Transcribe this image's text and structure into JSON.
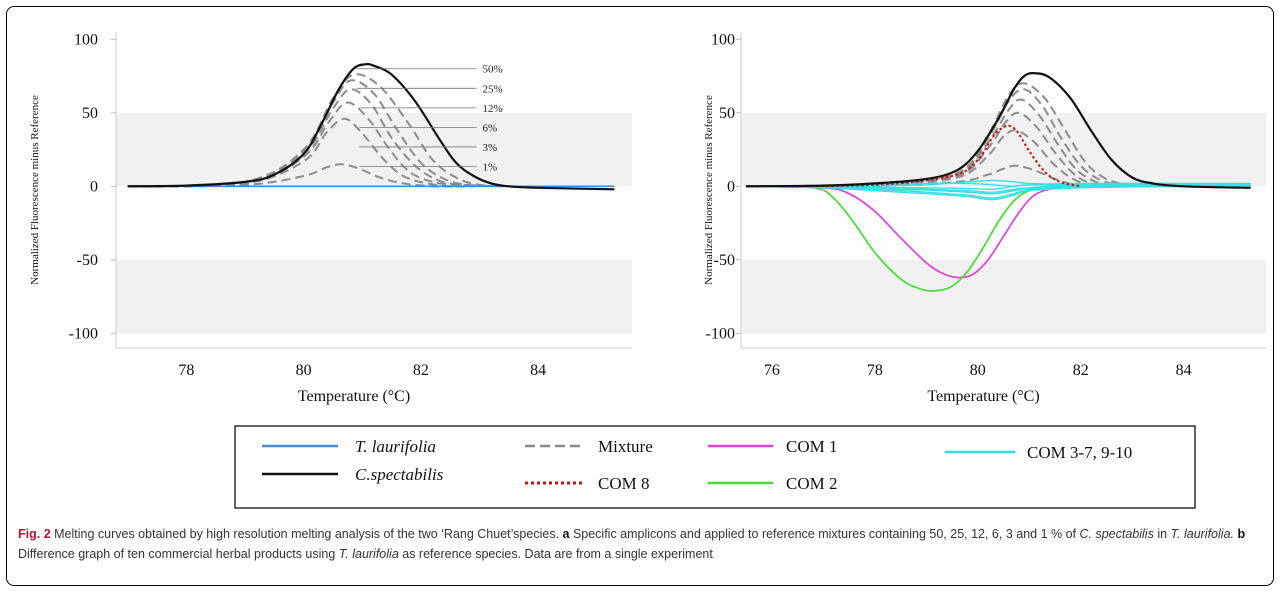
{
  "figure": {
    "caption": {
      "label": "Fig. 2",
      "text1": " Melting curves obtained by high resolution melting analysis of the two ‘Rang Chuet’species. ",
      "part_a": "a",
      "text2": " Specific amplicons and applied to reference mixtures containing 50, 25, 12, 6, 3 and 1 % of ",
      "species_c": "C. spectabilis",
      "text3": " in ",
      "species_t": "T. laurifolia.",
      "part_b": "b",
      "text4": " Difference graph of ten commercial herbal products using ",
      "species_t2": "T. laurifolia",
      "text5": " as reference species. Data are from a single experiment"
    }
  },
  "legend": [
    {
      "label": "T. laurifolia",
      "style": "solid",
      "color": "#4a86d8",
      "italic": true
    },
    {
      "label": "C.spectabilis",
      "style": "solid",
      "color": "#111111",
      "italic": true
    },
    {
      "label": "Mixture",
      "style": "dashed",
      "color": "#8a8a8a",
      "italic": false
    },
    {
      "label": "COM 8",
      "style": "dotted",
      "color": "#cc1111",
      "italic": false
    },
    {
      "label": "COM 1",
      "style": "solid",
      "color": "#e040e0",
      "italic": false
    },
    {
      "label": "COM 2",
      "style": "solid",
      "color": "#44dd33",
      "italic": false
    },
    {
      "label": "COM 3-7, 9-10",
      "style": "solid",
      "color": "#33e0e8",
      "italic": false
    }
  ],
  "chart_data": [
    {
      "type": "line",
      "xlabel": "Temperature (°C)",
      "ylabel": "Normalized Fluorescence minus Reference",
      "xlim": [
        76.8,
        85.6
      ],
      "ylim": [
        -110,
        105
      ],
      "xticks": [
        "78",
        "80",
        "82",
        "84"
      ],
      "yticks": [
        "100",
        "50",
        "0",
        "-50",
        "-100"
      ],
      "grid_bands": true,
      "mixture_labels": [
        "50%",
        "25%",
        "12%",
        "6%",
        "3%",
        "1%"
      ],
      "series": [
        {
          "name": "C.spectabilis",
          "x": [
            77.0,
            78.0,
            79.0,
            79.5,
            80.0,
            80.3,
            80.6,
            80.85,
            81.05,
            81.2,
            81.5,
            81.9,
            82.3,
            82.6,
            82.9,
            83.2,
            83.5,
            84.0,
            85.3
          ],
          "y": [
            0,
            0.5,
            3,
            8,
            22,
            42,
            66,
            80,
            83,
            82,
            76,
            58,
            33,
            16,
            7,
            2,
            0,
            -1,
            -2
          ]
        },
        {
          "name": "T. laurifolia",
          "x": [
            77.0,
            85.3
          ],
          "y": [
            0,
            0
          ]
        },
        {
          "name": "Mixture 50%",
          "x": [
            77.0,
            79.0,
            80.0,
            80.5,
            80.85,
            81.3,
            81.8,
            82.2,
            82.6,
            83.0,
            83.6
          ],
          "y": [
            0,
            3,
            25,
            60,
            76,
            68,
            42,
            18,
            6,
            1,
            0
          ]
        },
        {
          "name": "Mixture 25%",
          "x": [
            77.0,
            79.0,
            80.0,
            80.5,
            80.8,
            81.2,
            81.6,
            82.0,
            82.4,
            82.8,
            83.4
          ],
          "y": [
            0,
            3,
            24,
            57,
            72,
            63,
            38,
            16,
            5,
            1,
            0
          ]
        },
        {
          "name": "Mixture 12%",
          "x": [
            77.0,
            79.0,
            80.0,
            80.5,
            80.8,
            81.15,
            81.5,
            81.9,
            82.3,
            82.7,
            83.2
          ],
          "y": [
            0,
            3,
            22,
            53,
            66,
            56,
            33,
            14,
            4,
            1,
            0
          ]
        },
        {
          "name": "Mixture 6%",
          "x": [
            77.0,
            79.0,
            80.0,
            80.45,
            80.75,
            81.1,
            81.45,
            81.8,
            82.2,
            82.6,
            83.0
          ],
          "y": [
            0,
            2,
            20,
            45,
            57,
            46,
            26,
            10,
            3,
            1,
            0
          ]
        },
        {
          "name": "Mixture 3%",
          "x": [
            77.0,
            79.0,
            80.0,
            80.4,
            80.7,
            81.0,
            81.35,
            81.7,
            82.1,
            82.5,
            82.9
          ],
          "y": [
            0,
            2,
            17,
            37,
            46,
            36,
            19,
            7,
            2,
            0,
            0
          ]
        },
        {
          "name": "Mixture 1%",
          "x": [
            77.0,
            79.0,
            80.0,
            80.4,
            80.65,
            80.95,
            81.3,
            81.7,
            82.2,
            82.7
          ],
          "y": [
            0,
            1,
            7,
            13,
            15,
            12,
            6,
            2,
            0,
            0
          ]
        }
      ]
    },
    {
      "type": "line",
      "xlabel": "Temperature (°C)",
      "ylabel": "Normalized Fluorescence minus Reference",
      "xlim": [
        75.4,
        85.6
      ],
      "ylim": [
        -110,
        105
      ],
      "xticks": [
        "76",
        "78",
        "80",
        "82",
        "84"
      ],
      "yticks": [
        "100",
        "50",
        "0",
        "-50",
        "-100"
      ],
      "grid_bands": true,
      "series": [
        {
          "name": "C.spectabilis",
          "x": [
            75.5,
            77.0,
            78.0,
            79.0,
            79.6,
            80.0,
            80.4,
            80.7,
            80.9,
            81.1,
            81.4,
            81.8,
            82.2,
            82.6,
            83.0,
            83.4,
            84.0,
            85.3
          ],
          "y": [
            0,
            0.5,
            2,
            5,
            11,
            24,
            46,
            66,
            75,
            77,
            74,
            60,
            38,
            18,
            6,
            2,
            0,
            -1
          ]
        },
        {
          "name": "COM 8",
          "x": [
            75.5,
            78.0,
            79.5,
            80.0,
            80.3,
            80.55,
            80.75,
            81.0,
            81.3,
            81.6,
            82.0
          ],
          "y": [
            0,
            1,
            7,
            18,
            34,
            41,
            38,
            24,
            10,
            3,
            0
          ]
        },
        {
          "name": "Mixture 50%",
          "x": [
            75.5,
            78.0,
            79.6,
            80.2,
            80.6,
            80.9,
            81.3,
            81.7,
            82.1,
            82.5,
            83.0
          ],
          "y": [
            0,
            1,
            9,
            35,
            62,
            70,
            60,
            38,
            16,
            5,
            0
          ]
        },
        {
          "name": "Mixture 25%",
          "x": [
            75.5,
            78.0,
            79.6,
            80.2,
            80.6,
            80.9,
            81.25,
            81.6,
            82.0,
            82.4,
            82.9
          ],
          "y": [
            0,
            1,
            9,
            33,
            58,
            66,
            55,
            34,
            14,
            4,
            0
          ]
        },
        {
          "name": "Mixture 12%",
          "x": [
            75.5,
            78.0,
            79.6,
            80.2,
            80.6,
            80.85,
            81.2,
            81.55,
            81.9,
            82.3,
            82.8
          ],
          "y": [
            0,
            1,
            8,
            30,
            52,
            59,
            48,
            29,
            12,
            3,
            0
          ]
        },
        {
          "name": "Mixture 6%",
          "x": [
            75.5,
            78.0,
            79.6,
            80.2,
            80.55,
            80.8,
            81.15,
            81.5,
            81.85,
            82.2,
            82.7
          ],
          "y": [
            0,
            1,
            7,
            26,
            44,
            50,
            40,
            23,
            9,
            2,
            0
          ]
        },
        {
          "name": "Mixture 3%",
          "x": [
            75.5,
            78.0,
            79.6,
            80.2,
            80.5,
            80.75,
            81.1,
            81.45,
            81.8,
            82.2
          ],
          "y": [
            0,
            1,
            6,
            21,
            34,
            38,
            30,
            16,
            6,
            0
          ]
        },
        {
          "name": "Mixture 1%",
          "x": [
            75.5,
            78.0,
            79.6,
            80.2,
            80.5,
            80.75,
            81.1,
            81.5,
            81.9,
            82.3
          ],
          "y": [
            0,
            0.5,
            3,
            8,
            12,
            14,
            11,
            5,
            1,
            0
          ]
        },
        {
          "name": "COM 1",
          "x": [
            75.5,
            77.0,
            77.5,
            78.0,
            78.5,
            79.0,
            79.3,
            79.6,
            79.9,
            80.2,
            80.5,
            80.8,
            81.1,
            81.5,
            82.0,
            83.0,
            85.3
          ],
          "y": [
            0,
            -1,
            -5,
            -17,
            -35,
            -52,
            -59,
            -62,
            -60,
            -50,
            -34,
            -18,
            -6,
            -1,
            0,
            0,
            0
          ]
        },
        {
          "name": "COM 2",
          "x": [
            75.5,
            76.8,
            77.2,
            77.6,
            78.0,
            78.5,
            78.9,
            79.2,
            79.5,
            79.8,
            80.1,
            80.4,
            80.7,
            81.0,
            81.5,
            82.0,
            85.3
          ],
          "y": [
            0,
            -1,
            -8,
            -25,
            -45,
            -63,
            -70,
            -71,
            -68,
            -58,
            -42,
            -24,
            -10,
            -3,
            0,
            0,
            0
          ]
        },
        {
          "name": "COM 3-7, 9-10 (a)",
          "x": [
            75.5,
            77.0,
            78.0,
            79.0,
            79.8,
            80.3,
            80.7,
            81.0,
            82.0,
            84.0,
            85.3
          ],
          "y": [
            0,
            -0.5,
            -1.5,
            -2.5,
            -4,
            -5,
            -3,
            -1,
            1,
            1,
            1
          ]
        },
        {
          "name": "COM 3-7, 9-10 (b)",
          "x": [
            75.5,
            77.0,
            78.0,
            79.0,
            79.8,
            80.3,
            80.7,
            81.0,
            82.0,
            84.0,
            85.3
          ],
          "y": [
            0,
            -0.5,
            -2,
            -4,
            -6,
            -8,
            -5,
            -2,
            0,
            1,
            0
          ]
        },
        {
          "name": "COM 3-7, 9-10 (c)",
          "x": [
            75.5,
            77.0,
            78.0,
            79.0,
            79.8,
            80.3,
            80.7,
            81.0,
            82.0,
            84.0,
            85.3
          ],
          "y": [
            0,
            0,
            1,
            2,
            2,
            1,
            0,
            1,
            2,
            2,
            2
          ]
        },
        {
          "name": "COM 3-7, 9-10 (d)",
          "x": [
            75.5,
            77.0,
            78.0,
            79.0,
            79.8,
            80.3,
            80.7,
            81.0,
            82.0,
            84.0,
            85.3
          ],
          "y": [
            0,
            -0.5,
            -1,
            -2,
            -3,
            -4,
            -2,
            -1,
            0,
            0,
            0
          ]
        },
        {
          "name": "COM 3-7, 9-10 (e)",
          "x": [
            75.5,
            77.0,
            78.0,
            79.0,
            79.8,
            80.3,
            80.7,
            81.0,
            82.0,
            84.0,
            85.3
          ],
          "y": [
            0,
            0,
            -0.5,
            -1,
            -1.5,
            -2,
            0,
            1,
            1,
            1,
            1
          ]
        },
        {
          "name": "COM 3-7, 9-10 (f)",
          "x": [
            75.5,
            77.0,
            78.0,
            79.0,
            79.8,
            80.3,
            80.7,
            81.0,
            82.0,
            84.0,
            85.3
          ],
          "y": [
            0,
            -1,
            -3,
            -5,
            -7,
            -9,
            -6,
            -3,
            -1,
            0,
            0
          ]
        },
        {
          "name": "COM 3-7, 9-10 (g)",
          "x": [
            75.5,
            77.0,
            78.0,
            79.0,
            79.8,
            80.3,
            80.7,
            81.0,
            82.0,
            84.0,
            85.3
          ],
          "y": [
            0,
            0,
            0.5,
            1,
            3,
            4,
            3,
            2,
            1,
            0,
            0
          ]
        }
      ]
    }
  ]
}
